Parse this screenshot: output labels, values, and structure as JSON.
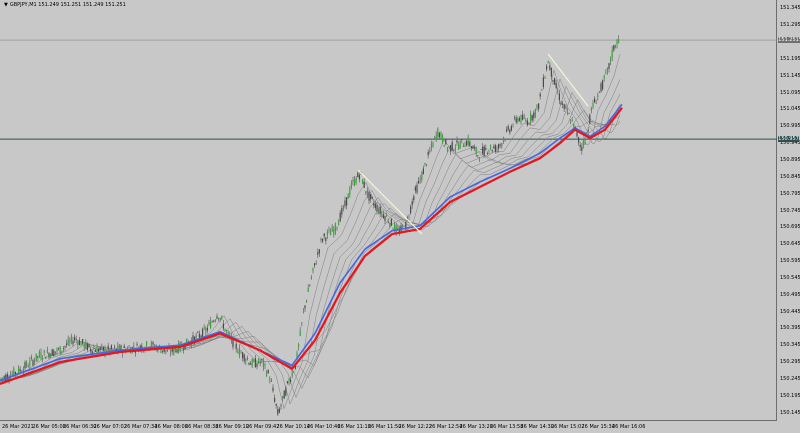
{
  "window": {
    "title": "GBPJPY,M1  151.249 151.251 151.249 151.251",
    "title_icon": "triangle-down-icon"
  },
  "price_axis": {
    "labels": [
      "151.345",
      "151.295",
      "151.245",
      "151.195",
      "151.145",
      "151.095",
      "151.045",
      "150.995",
      "150.945",
      "150.895",
      "150.845",
      "150.795",
      "150.745",
      "150.695",
      "150.645",
      "150.595",
      "150.545",
      "150.495",
      "150.445",
      "150.395",
      "150.345",
      "150.295",
      "150.245",
      "150.195",
      "150.145"
    ]
  },
  "time_axis": {
    "labels": [
      "26 Mar 2021",
      "26 Mar 05:08",
      "26 Mar 06:30",
      "26 Mar 07:02",
      "26 Mar 07:34",
      "26 Mar 08:06",
      "26 Mar 08:38",
      "26 Mar 09:10",
      "26 Mar 09:42",
      "26 Mar 10:14",
      "26 Mar 10:46",
      "26 Mar 11:18",
      "26 Mar 11:50",
      "26 Mar 12:22",
      "26 Mar 12:54",
      "26 Mar 13:26",
      "26 Mar 13:58",
      "26 Mar 14:30",
      "26 Mar 15:02",
      "26 Mar 15:34",
      "26 Mar 16:06"
    ]
  },
  "current_price": {
    "label": "151.251",
    "value": 151.251
  },
  "horizontal_line": {
    "label": "150.957",
    "value": 150.957
  },
  "colors": {
    "background": "#c8c8c8",
    "candle": "#6e6e6e",
    "ma_fast": "#4169e1",
    "ma_slow": "#e8141e",
    "ma_ribbon": "#7c7c7c",
    "hline": "#2f4f4f",
    "trendline": "#f5f5dc"
  },
  "chart_data": {
    "type": "candlestick",
    "symbol": "GBPJPY",
    "timeframe": "M1",
    "ylim": [
      150.12,
      151.37
    ],
    "price_path": [
      [
        0,
        150.245
      ],
      [
        20,
        150.27
      ],
      [
        40,
        150.315
      ],
      [
        60,
        150.33
      ],
      [
        75,
        150.365
      ],
      [
        90,
        150.335
      ],
      [
        110,
        150.33
      ],
      [
        130,
        150.335
      ],
      [
        150,
        150.345
      ],
      [
        170,
        150.325
      ],
      [
        190,
        150.355
      ],
      [
        205,
        150.385
      ],
      [
        218,
        150.44
      ],
      [
        228,
        150.375
      ],
      [
        240,
        150.325
      ],
      [
        252,
        150.29
      ],
      [
        262,
        150.295
      ],
      [
        270,
        150.25
      ],
      [
        278,
        150.14
      ],
      [
        288,
        150.23
      ],
      [
        296,
        150.29
      ],
      [
        304,
        150.45
      ],
      [
        312,
        150.55
      ],
      [
        322,
        150.66
      ],
      [
        335,
        150.69
      ],
      [
        345,
        150.76
      ],
      [
        352,
        150.82
      ],
      [
        360,
        150.855
      ],
      [
        368,
        150.79
      ],
      [
        378,
        150.75
      ],
      [
        388,
        150.72
      ],
      [
        398,
        150.68
      ],
      [
        406,
        150.7
      ],
      [
        414,
        150.79
      ],
      [
        422,
        150.85
      ],
      [
        430,
        150.92
      ],
      [
        438,
        150.98
      ],
      [
        448,
        150.93
      ],
      [
        458,
        150.94
      ],
      [
        468,
        150.95
      ],
      [
        478,
        150.91
      ],
      [
        488,
        150.93
      ],
      [
        498,
        150.93
      ],
      [
        508,
        150.98
      ],
      [
        518,
        151.02
      ],
      [
        528,
        151.01
      ],
      [
        538,
        151.05
      ],
      [
        548,
        151.19
      ],
      [
        555,
        151.12
      ],
      [
        562,
        151.06
      ],
      [
        570,
        151.02
      ],
      [
        576,
        150.98
      ],
      [
        581,
        150.93
      ],
      [
        586,
        150.96
      ],
      [
        592,
        151.05
      ],
      [
        600,
        151.1
      ],
      [
        608,
        151.16
      ],
      [
        614,
        151.23
      ],
      [
        620,
        151.26
      ]
    ],
    "moving_averages": [
      {
        "role": "fast",
        "color": "#4169e1",
        "path": [
          [
            0,
            150.24
          ],
          [
            60,
            150.305
          ],
          [
            120,
            150.33
          ],
          [
            180,
            150.345
          ],
          [
            220,
            150.385
          ],
          [
            260,
            150.33
          ],
          [
            292,
            150.285
          ],
          [
            315,
            150.38
          ],
          [
            340,
            150.53
          ],
          [
            365,
            150.63
          ],
          [
            392,
            150.685
          ],
          [
            420,
            150.7
          ],
          [
            450,
            150.785
          ],
          [
            480,
            150.83
          ],
          [
            510,
            150.87
          ],
          [
            540,
            150.915
          ],
          [
            560,
            150.96
          ],
          [
            575,
            150.99
          ],
          [
            590,
            150.965
          ],
          [
            605,
            150.995
          ],
          [
            622,
            151.06
          ]
        ]
      },
      {
        "role": "slow",
        "color": "#e8141e",
        "path": [
          [
            0,
            150.23
          ],
          [
            60,
            150.295
          ],
          [
            120,
            150.325
          ],
          [
            180,
            150.34
          ],
          [
            220,
            150.38
          ],
          [
            260,
            150.33
          ],
          [
            292,
            150.275
          ],
          [
            315,
            150.36
          ],
          [
            340,
            150.5
          ],
          [
            365,
            150.61
          ],
          [
            392,
            150.675
          ],
          [
            420,
            150.69
          ],
          [
            450,
            150.77
          ],
          [
            480,
            150.815
          ],
          [
            510,
            150.86
          ],
          [
            540,
            150.9
          ],
          [
            560,
            150.945
          ],
          [
            575,
            150.985
          ],
          [
            590,
            150.96
          ],
          [
            605,
            150.985
          ],
          [
            622,
            151.05
          ]
        ]
      }
    ],
    "trendlines": [
      {
        "from": [
          358,
          150.865
        ],
        "to": [
          422,
          150.675
        ]
      },
      {
        "from": [
          548,
          151.21
        ],
        "to": [
          588,
          151.055
        ]
      }
    ],
    "current_price": 151.251,
    "horizontal_line": 150.957
  }
}
